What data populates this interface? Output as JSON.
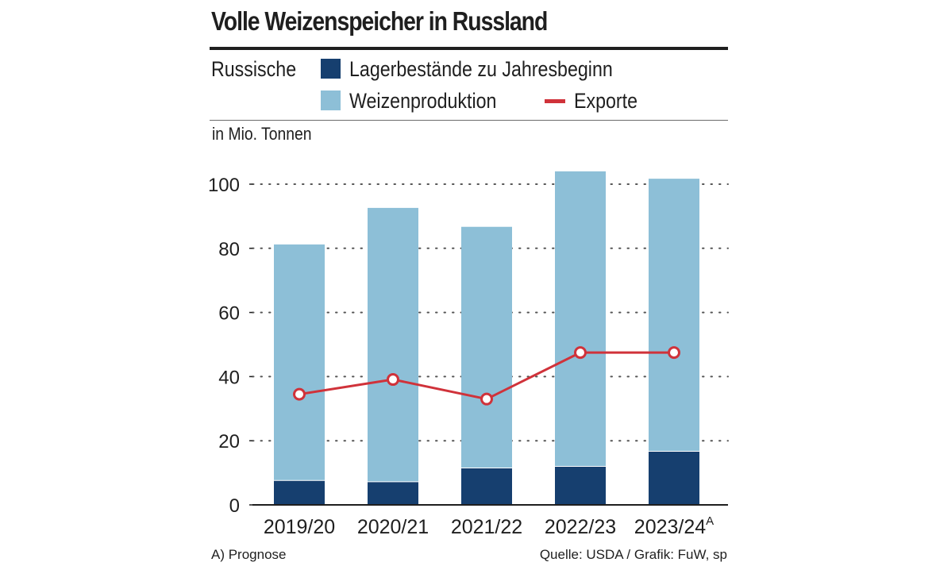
{
  "title": "Volle Weizenspeicher in Russland",
  "legend": {
    "prefix": "Russische",
    "stock_label": "Lagerbestände zu Jahresbeginn",
    "production_label": "Weizenproduktion",
    "exports_label": "Exporte"
  },
  "unit": "in Mio. Tonnen",
  "footer": {
    "note": "A) Prognose",
    "source": "Quelle: USDA / Grafik: FuW, sp"
  },
  "colors": {
    "stock": "#163f6f",
    "production": "#8dbfd7",
    "exports": "#d0323a"
  },
  "chart_data": {
    "type": "bar",
    "stacked": true,
    "title": "Volle Weizenspeicher in Russland",
    "ylabel": "in Mio. Tonnen",
    "ylim": [
      0,
      100
    ],
    "yticks": [
      "0",
      "20",
      "40",
      "60",
      "80",
      "100"
    ],
    "categories": [
      "2019/20",
      "2020/21",
      "2021/22",
      "2022/23",
      "2023/24"
    ],
    "category_superscripts": [
      "",
      "",
      "",
      "",
      "A"
    ],
    "series": [
      {
        "name": "Lagerbestände zu Jahresbeginn",
        "kind": "bar",
        "values": [
          7.6,
          7.2,
          11.5,
          12.0,
          16.7
        ]
      },
      {
        "name": "Weizenproduktion",
        "kind": "bar",
        "values": [
          73.6,
          85.4,
          75.2,
          92.0,
          85.0
        ]
      },
      {
        "name": "Exporte",
        "kind": "line",
        "values": [
          34.5,
          39.1,
          33.0,
          47.5,
          47.5
        ]
      }
    ],
    "grid": "dotted horizontal"
  }
}
